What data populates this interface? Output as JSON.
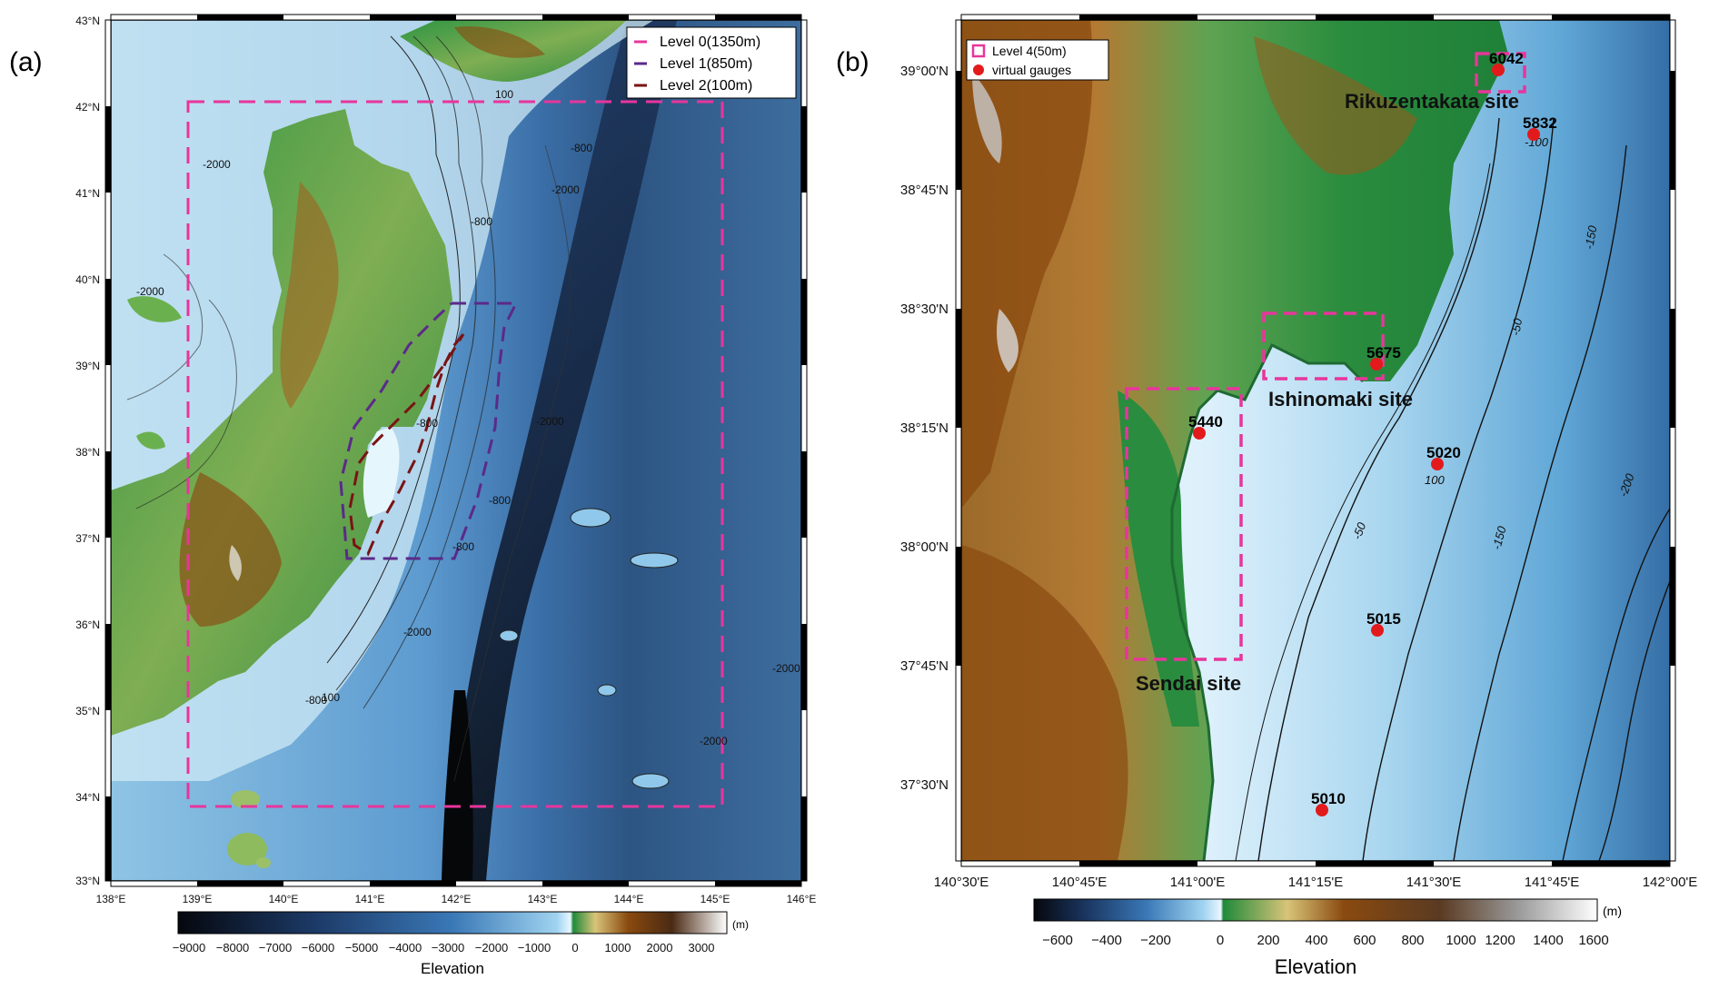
{
  "colors": {
    "deep": "#0a0f1c",
    "ocean_mid": "#2f6aa8",
    "ocean_light": "#cfeaf6",
    "lowland": "#1f8a3a",
    "midland": "#d7c377",
    "highland": "#8a4a0f",
    "peak": "#ffffff",
    "level0": "#e8359c",
    "level1": "#5b2a8a",
    "level2": "#7a1414",
    "level4": "#e8359c",
    "gauge": "#e31a1c"
  },
  "panel_a": {
    "label": "(a)",
    "lon_ticks": [
      "138°E",
      "139°E",
      "140°E",
      "141°E",
      "142°E",
      "143°E",
      "144°E",
      "145°E",
      "146°E"
    ],
    "lat_ticks": [
      "43°N",
      "42°N",
      "41°N",
      "40°N",
      "39°N",
      "38°N",
      "37°N",
      "36°N",
      "35°N",
      "34°N",
      "33°N"
    ],
    "legend": [
      {
        "label": "Level 0(1350m)",
        "color": "#e8359c"
      },
      {
        "label": "Level 1(850m)",
        "color": "#5b2a8a"
      },
      {
        "label": "Level 2(100m)",
        "color": "#7a1414"
      }
    ],
    "contour_labels": [
      "100",
      "-800",
      "-2000",
      "-2000",
      "-800",
      "-2000",
      "-800",
      "-2000",
      "-2000",
      "-800",
      "-800",
      "100",
      "-2000",
      "-2000",
      "-800"
    ],
    "colorbar": {
      "ticks": [
        "−9000",
        "−8000",
        "−7000",
        "−6000",
        "−5000",
        "−4000",
        "−3000",
        "−2000",
        "−1000",
        "0",
        "1000",
        "2000",
        "3000"
      ],
      "unit": "(m)",
      "title": "Elevation"
    }
  },
  "panel_b": {
    "label": "(b)",
    "lon_ticks": [
      "140°30'E",
      "140°45'E",
      "141°00'E",
      "141°15'E",
      "141°30'E",
      "141°45'E",
      "142°00'E"
    ],
    "lat_ticks": [
      "39°00'N",
      "38°45'N",
      "38°30'N",
      "38°15'N",
      "38°00'N",
      "37°45'N",
      "37°30'N"
    ],
    "legend": [
      {
        "label": "Level 4(50m)",
        "kind": "box",
        "color": "#e8359c"
      },
      {
        "label": "virtual gauges",
        "kind": "dot",
        "color": "#e31a1c"
      }
    ],
    "sites": [
      "Rikuzentakata site",
      "Ishinomaki site",
      "Sendai site"
    ],
    "gauges": [
      {
        "id": "6042",
        "lon": 141.63,
        "lat": 39.0
      },
      {
        "id": "5832",
        "lon": 141.73,
        "lat": 38.92
      },
      {
        "id": "5675",
        "lon": 141.38,
        "lat": 38.39
      },
      {
        "id": "5440",
        "lon": 141.03,
        "lat": 38.23
      },
      {
        "id": "5020",
        "lon": 141.51,
        "lat": 38.17
      },
      {
        "id": "5015",
        "lon": 141.38,
        "lat": 37.82
      },
      {
        "id": "5010",
        "lon": 141.26,
        "lat": 37.44
      }
    ],
    "contour_labels": [
      "-50",
      "-100",
      "-150",
      "-200",
      "-50",
      "-150",
      "100"
    ],
    "colorbar": {
      "ticks": [
        "−600",
        "−400",
        "−200",
        "0",
        "200",
        "400",
        "600",
        "800",
        "1000",
        "1200",
        "1400",
        "1600"
      ],
      "unit": "(m)",
      "title": "Elevation"
    }
  }
}
